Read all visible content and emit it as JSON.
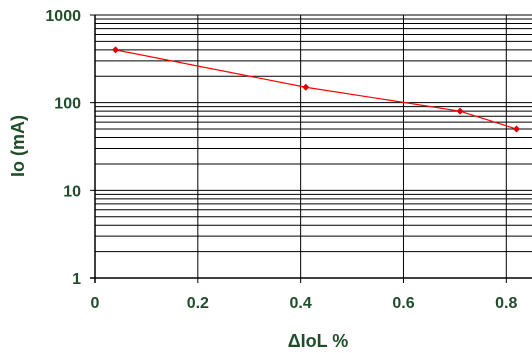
{
  "chart_data": {
    "type": "line",
    "title": "",
    "xlabel": "ΔIoL %",
    "ylabel": "Io (mA)",
    "x_ticks": [
      "0",
      "0.2",
      "0.4",
      "0.6",
      "0.8"
    ],
    "y_ticks": [
      "1",
      "10",
      "100",
      "1000"
    ],
    "xlim": [
      0,
      0.85
    ],
    "ylim": [
      1,
      1000
    ],
    "y_scale": "log",
    "grid": "on",
    "legend": "none",
    "series": [
      {
        "x": [
          0.04,
          0.41,
          0.71,
          0.82
        ],
        "y": [
          400,
          150,
          80,
          50
        ],
        "color": "#ff0000",
        "marker": "diamond",
        "marker_color": "#e00000"
      }
    ],
    "colors": {
      "grid": "#000000",
      "axis_text": "#1f4e2a",
      "background": "#ffffff"
    }
  }
}
